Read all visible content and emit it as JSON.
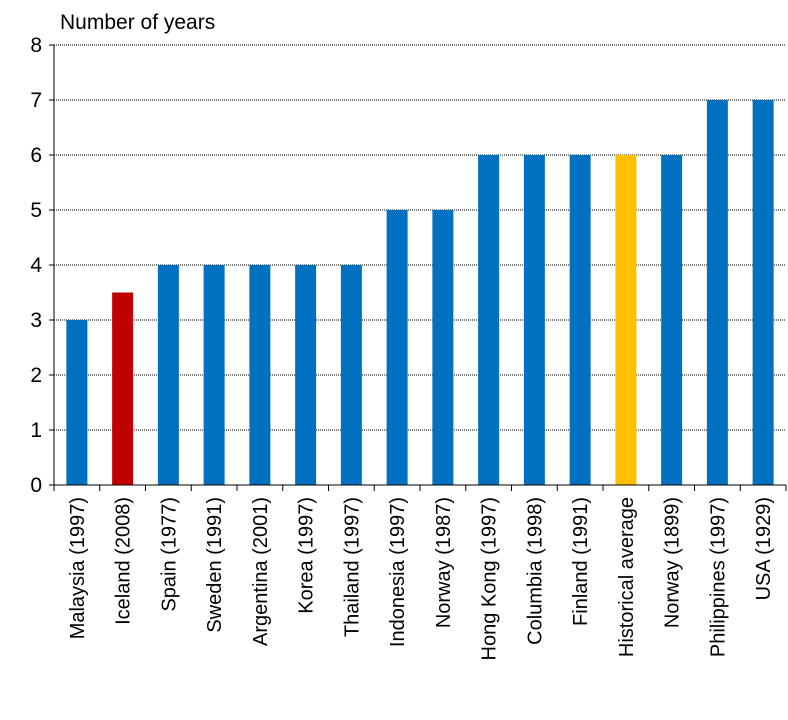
{
  "chart_data": {
    "type": "bar",
    "ylabel": "Number of years",
    "ylim": [
      0,
      8
    ],
    "yticks": [
      0,
      1,
      2,
      3,
      4,
      5,
      6,
      7,
      8
    ],
    "grid": true,
    "categories": [
      "Malaysia (1997)",
      "Iceland (2008)",
      "Spain (1977)",
      "Sweden (1991)",
      "Argentina (2001)",
      "Korea (1997)",
      "Thailand (1997)",
      "Indonesia (1997)",
      "Norway (1987)",
      "Hong Kong (1997)",
      "Columbia (1998)",
      "Finland (1991)",
      "Historical average",
      "Norway (1899)",
      "Philippines (1997)",
      "USA (1929)"
    ],
    "values": [
      3,
      3.5,
      4,
      4,
      4,
      4,
      4,
      5,
      5,
      6,
      6,
      6,
      6,
      6,
      7,
      7
    ],
    "colors": {
      "default": "#0070C0",
      "Iceland (2008)": "#C00000",
      "Historical average": "#FFC000"
    }
  }
}
